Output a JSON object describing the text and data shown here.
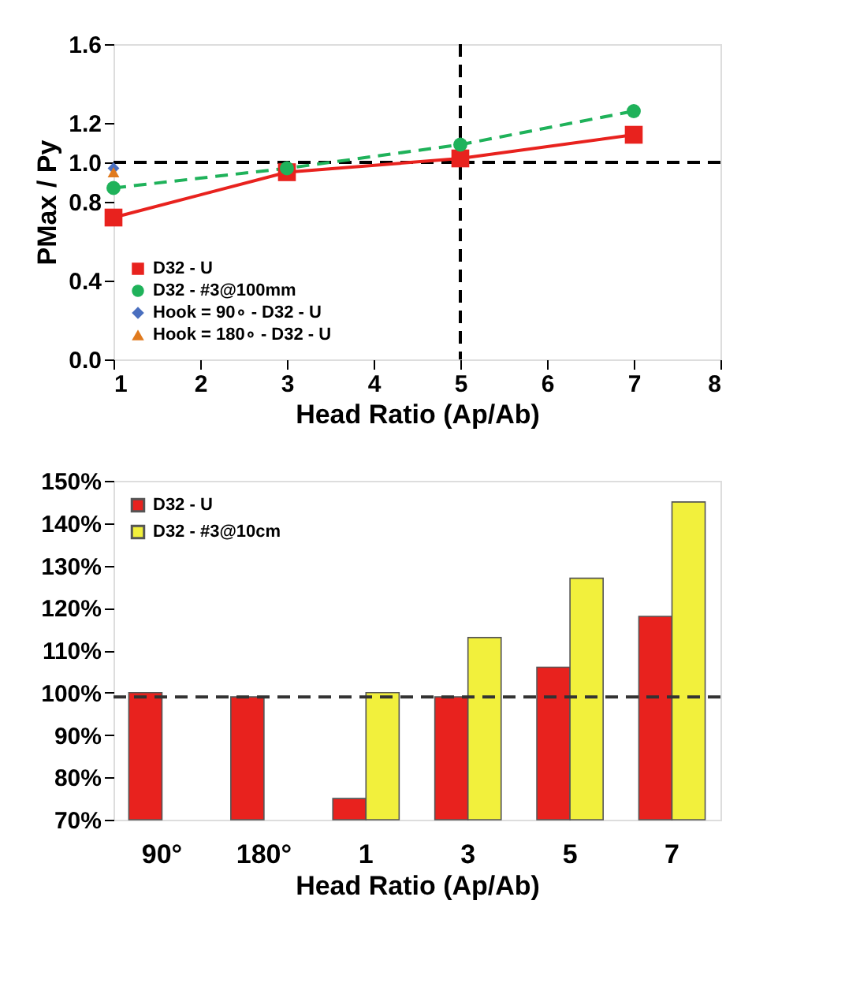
{
  "chart_data": [
    {
      "type": "line",
      "xlabel": "Head Ratio (Ap/Ab)",
      "ylabel": "PMax / Py",
      "xlim": [
        1,
        8
      ],
      "xticks": [
        1,
        2,
        3,
        4,
        5,
        6,
        7,
        8
      ],
      "ylim": [
        0,
        1.6
      ],
      "yticks": [
        {
          "value": 0,
          "label": "0.0"
        },
        0.4,
        0.8,
        {
          "value": 1,
          "label": "1.0"
        },
        1.2,
        1.6
      ],
      "grid": false,
      "legend": "bottom left",
      "series": [
        {
          "name": "D32 - U",
          "color": "#e8221e",
          "x": [
            1,
            3,
            5,
            7
          ],
          "values": [
            0.72,
            0.95,
            1.02,
            1.14
          ],
          "marker": "square",
          "line_style": "solid"
        },
        {
          "name": "D32 - #3@100mm",
          "color": "#1fb25a",
          "x": [
            1,
            3,
            5,
            7
          ],
          "values": [
            0.87,
            0.97,
            1.09,
            1.26
          ],
          "marker": "circle",
          "line_style": "dashed"
        },
        {
          "name": "Hook = 90∘ - D32 - U",
          "type": "scatter",
          "color": "#4a6fbf",
          "x": [
            1
          ],
          "values": [
            0.97
          ],
          "marker": "diamond"
        },
        {
          "name": "Hook = 180∘ - D32 - U",
          "type": "scatter",
          "color": "#e07a1e",
          "x": [
            1
          ],
          "values": [
            0.95
          ],
          "marker": "triangle"
        }
      ],
      "ref_lines": [
        {
          "axis": "y",
          "value": 1.0,
          "line_style": "dashed",
          "color": "#000000"
        },
        {
          "axis": "x",
          "value": 5,
          "line_style": "dashed",
          "color": "#000000"
        }
      ]
    },
    {
      "type": "bar",
      "xlabel": "Head Ratio (Ap/Ab)",
      "categories": [
        "90°",
        "180°",
        "1",
        "3",
        "5",
        "7"
      ],
      "ylim": [
        70,
        150
      ],
      "yticks": [
        {
          "value": 70,
          "label": "70%"
        },
        {
          "value": 80,
          "label": "80%"
        },
        {
          "value": 90,
          "label": "90%"
        },
        {
          "value": 100,
          "label": "100%"
        },
        {
          "value": 110,
          "label": "110%"
        },
        {
          "value": 120,
          "label": "120%"
        },
        {
          "value": 130,
          "label": "130%"
        },
        {
          "value": 140,
          "label": "140%"
        },
        {
          "value": 150,
          "label": "150%"
        }
      ],
      "grid": false,
      "legend": "top left",
      "series": [
        {
          "name": "D32 - U",
          "color": "#e8221e",
          "values": [
            100,
            99,
            75,
            99,
            106,
            118
          ]
        },
        {
          "name": "D32 - #3@10cm",
          "color": "#f2f03c",
          "values": [
            null,
            null,
            100,
            113,
            127,
            145
          ]
        }
      ],
      "ref_lines": [
        {
          "axis": "y",
          "value": 99,
          "line_style": "dashed",
          "color": "#333333"
        }
      ]
    }
  ]
}
